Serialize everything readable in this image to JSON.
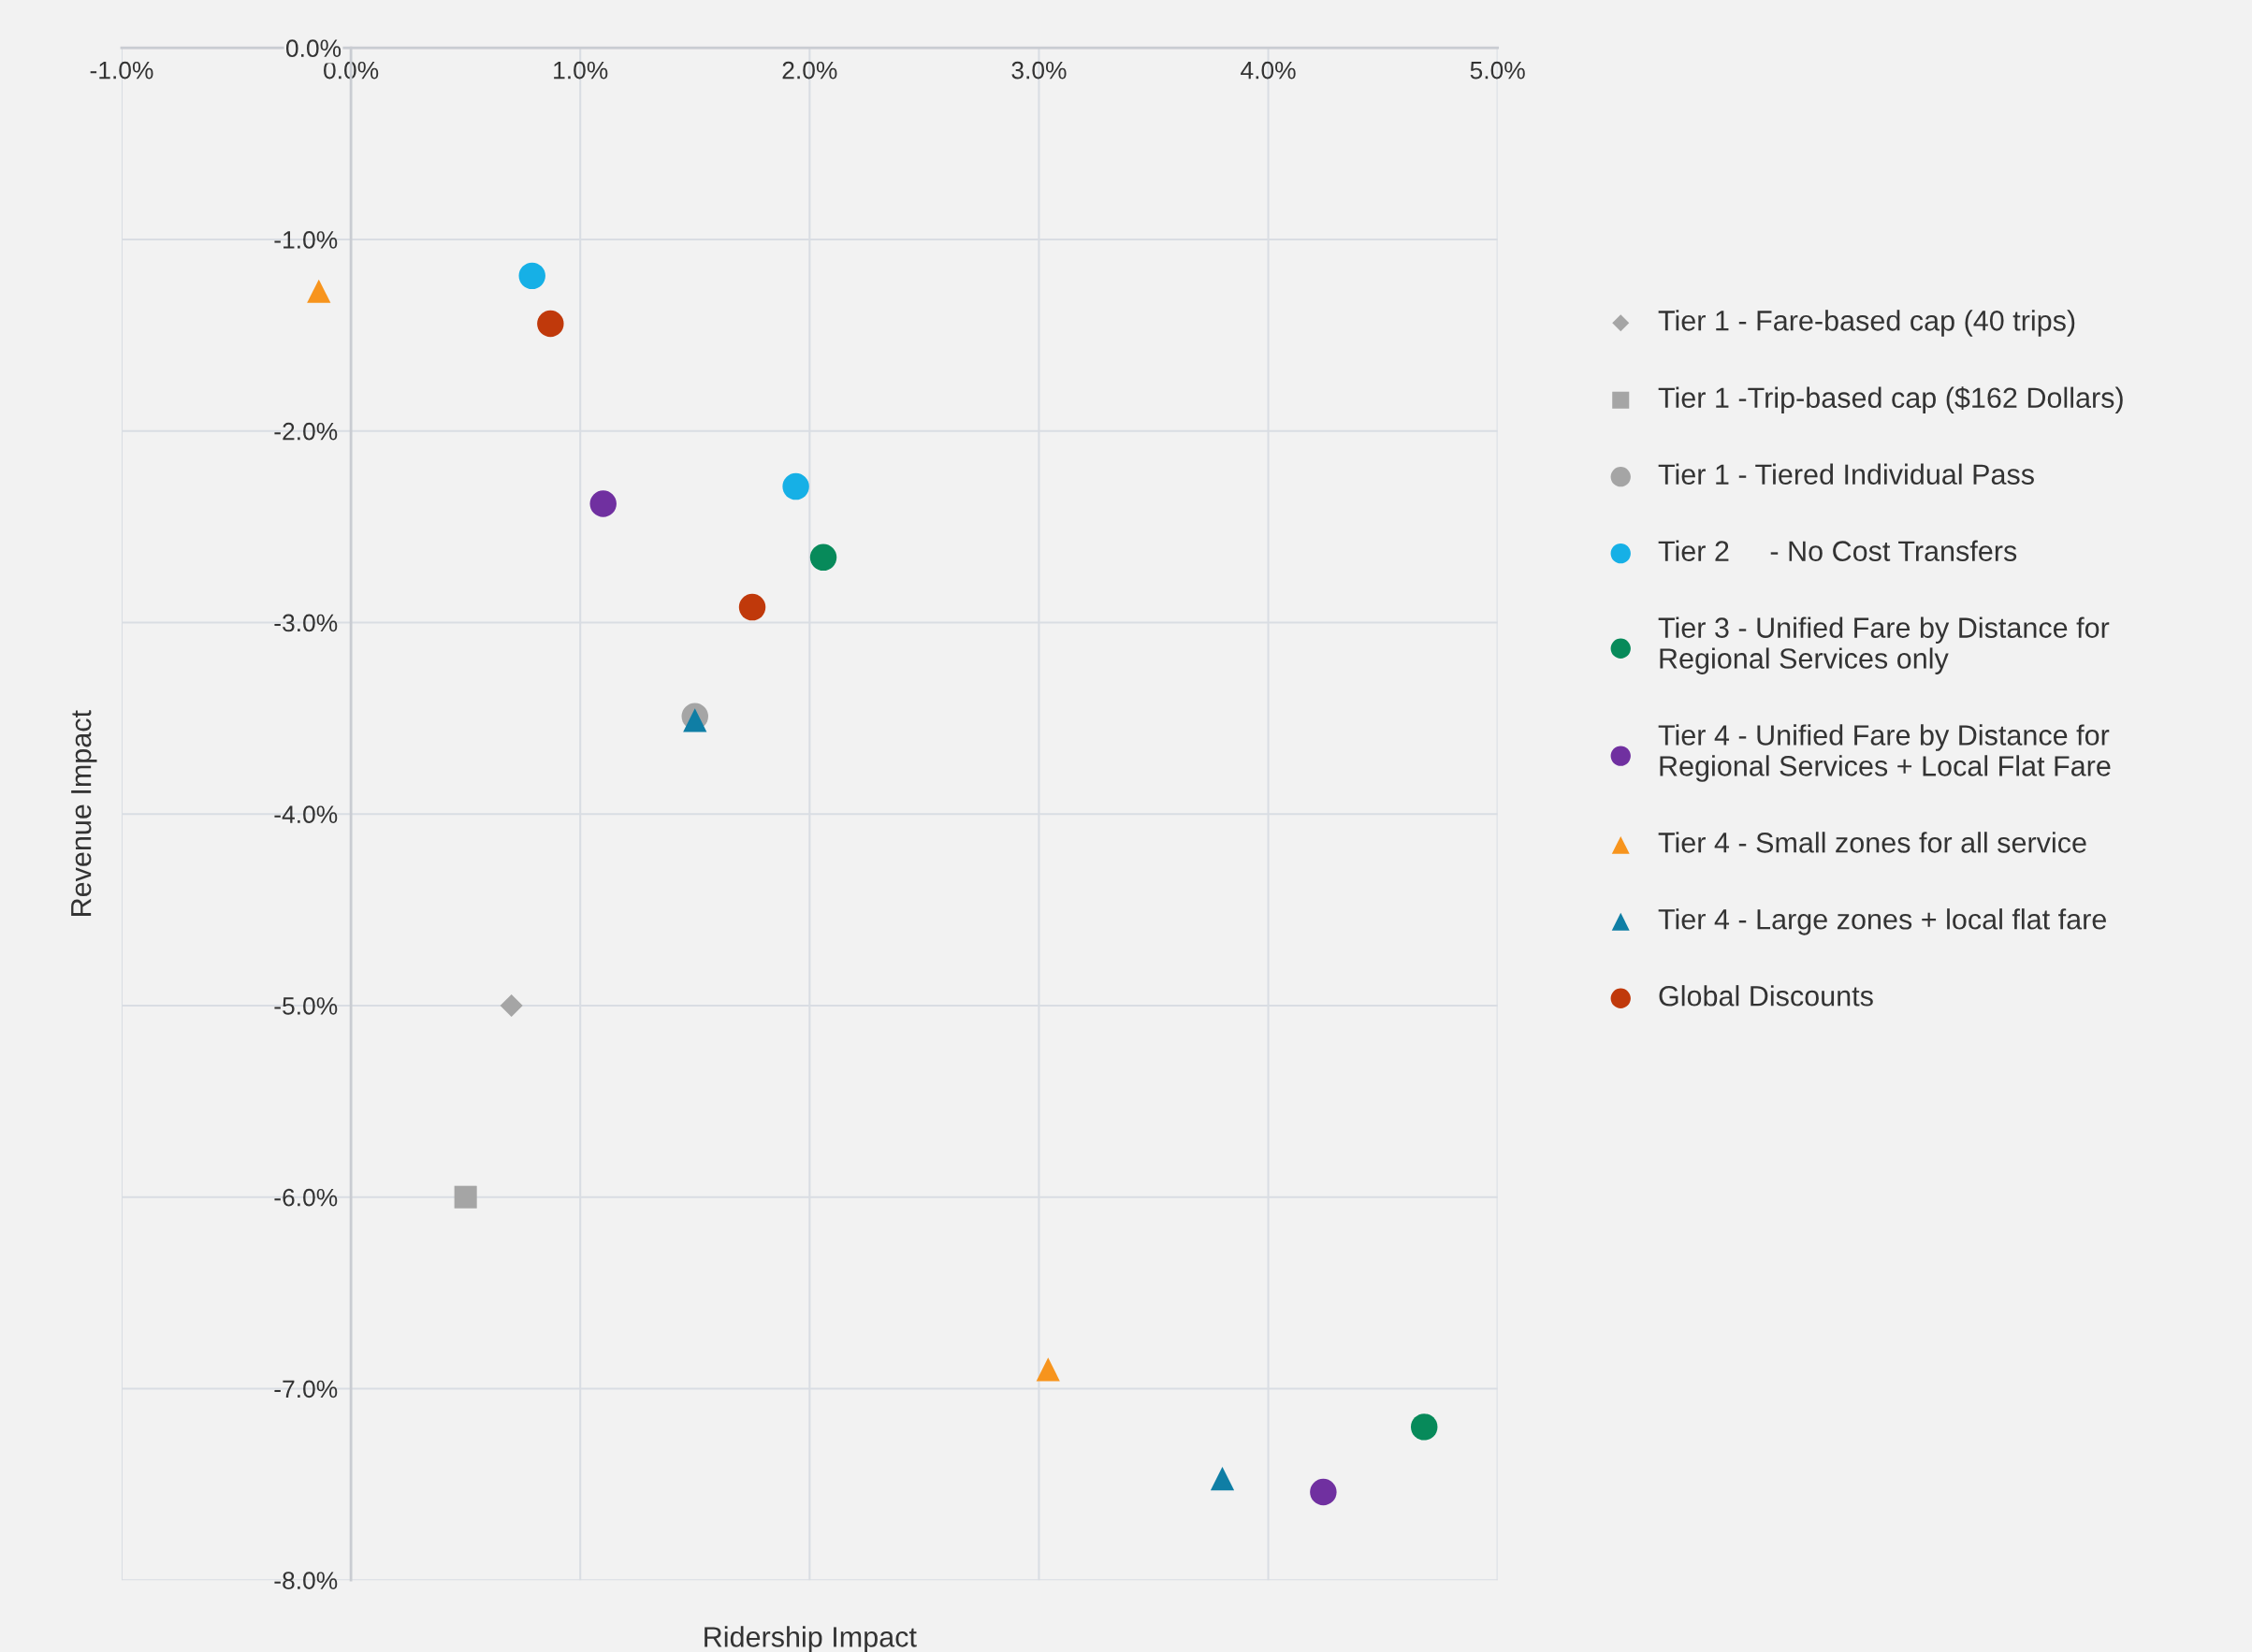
{
  "chart_data": {
    "type": "scatter",
    "xlabel": "Ridership Impact",
    "ylabel": "Revenue Impact",
    "xlim": [
      -1.0,
      5.0
    ],
    "ylim": [
      -8.0,
      0.0
    ],
    "xticks": [
      {
        "value": -1.0,
        "label": "-1.0%"
      },
      {
        "value": 0.0,
        "label": "0.0%"
      },
      {
        "value": 1.0,
        "label": "1.0%"
      },
      {
        "value": 2.0,
        "label": "2.0%"
      },
      {
        "value": 3.0,
        "label": "3.0%"
      },
      {
        "value": 4.0,
        "label": "4.0%"
      },
      {
        "value": 5.0,
        "label": "5.0%"
      }
    ],
    "yticks": [
      {
        "value": 0.0,
        "label": "0.0%"
      },
      {
        "value": -1.0,
        "label": "-1.0%"
      },
      {
        "value": -2.0,
        "label": "-2.0%"
      },
      {
        "value": -3.0,
        "label": "-3.0%"
      },
      {
        "value": -4.0,
        "label": "-4.0%"
      },
      {
        "value": -5.0,
        "label": "-5.0%"
      },
      {
        "value": -6.0,
        "label": "-6.0%"
      },
      {
        "value": -7.0,
        "label": "-7.0%"
      },
      {
        "value": -8.0,
        "label": "-8.0%"
      }
    ],
    "grid": true,
    "legend": "right",
    "series": [
      {
        "name": "Tier 1 - Fare-based cap (40 trips)",
        "color": "#a5a5a5",
        "marker": "diamond",
        "x": [
          0.7
        ],
        "values": [
          -5.0
        ]
      },
      {
        "name": "Tier 1 -Trip-based cap ($162 Dollars)",
        "color": "#a5a5a5",
        "marker": "square",
        "x": [
          0.5
        ],
        "values": [
          -6.0
        ]
      },
      {
        "name": "Tier 1 - Tiered Individual Pass",
        "color": "#a5a5a5",
        "marker": "circle",
        "x": [
          1.5
        ],
        "values": [
          -3.49
        ]
      },
      {
        "name": "Tier 2     - No Cost Transfers",
        "color": "#16b0e6",
        "marker": "circle",
        "x": [
          0.79,
          1.94
        ],
        "values": [
          -1.19,
          -2.29
        ]
      },
      {
        "name": "Tier 3 - Unified Fare by Distance for\nRegional Services only",
        "color": "#078a5a",
        "marker": "circle",
        "x": [
          2.06,
          4.68
        ],
        "values": [
          -2.66,
          -7.2
        ]
      },
      {
        "name": "Tier 4 - Unified Fare by Distance for\nRegional Services + Local Flat Fare",
        "color": "#7030a0",
        "marker": "circle",
        "x": [
          1.1,
          4.24
        ],
        "values": [
          -2.38,
          -7.54
        ]
      },
      {
        "name": "Tier 4 - Small zones for all service",
        "color": "#f7941d",
        "marker": "triangle",
        "x": [
          -0.14,
          3.04
        ],
        "values": [
          -1.27,
          -6.9
        ]
      },
      {
        "name": "Tier 4 - Large zones + local flat fare",
        "color": "#0f7ea5",
        "marker": "triangle",
        "x": [
          1.5,
          3.8
        ],
        "values": [
          -3.51,
          -7.47
        ]
      },
      {
        "name": "Global Discounts",
        "color": "#c0390b",
        "marker": "circle",
        "x": [
          0.87,
          1.75
        ],
        "values": [
          -1.44,
          -2.92
        ]
      }
    ]
  }
}
